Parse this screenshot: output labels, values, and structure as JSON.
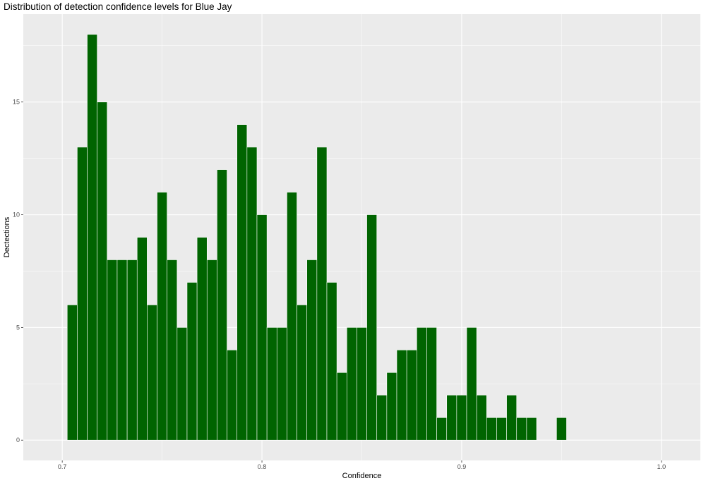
{
  "chart_data": {
    "type": "bar",
    "title": "Distribution of detection confidence levels for Blue Jay",
    "xlabel": "Confidence",
    "ylabel": "Dectections",
    "xlim": [
      0.6805,
      1.0195
    ],
    "ylim": [
      -0.9,
      18.9
    ],
    "x_ticks": [
      0.7,
      0.8,
      0.9,
      1.0
    ],
    "x_tick_labels": [
      "0.7",
      "0.8",
      "0.9",
      "1.0"
    ],
    "y_ticks": [
      0,
      5,
      10,
      15
    ],
    "y_tick_labels": [
      "0",
      "5",
      "10",
      "15"
    ],
    "bin_width": 0.005,
    "bin_centers": [
      0.705,
      0.71,
      0.715,
      0.72,
      0.725,
      0.73,
      0.735,
      0.74,
      0.745,
      0.75,
      0.755,
      0.76,
      0.765,
      0.77,
      0.775,
      0.78,
      0.785,
      0.79,
      0.795,
      0.8,
      0.805,
      0.81,
      0.815,
      0.82,
      0.825,
      0.83,
      0.835,
      0.84,
      0.845,
      0.85,
      0.855,
      0.86,
      0.865,
      0.87,
      0.875,
      0.88,
      0.885,
      0.89,
      0.895,
      0.9,
      0.905,
      0.91,
      0.915,
      0.92,
      0.925,
      0.93,
      0.935,
      0.94,
      0.945,
      0.95
    ],
    "values": [
      6,
      13,
      18,
      15,
      8,
      8,
      8,
      9,
      6,
      11,
      8,
      5,
      7,
      9,
      8,
      12,
      4,
      14,
      13,
      10,
      5,
      5,
      11,
      6,
      8,
      13,
      7,
      3,
      5,
      5,
      10,
      2,
      3,
      4,
      4,
      5,
      5,
      1,
      2,
      2,
      5,
      2,
      1,
      1,
      2,
      1,
      1,
      0,
      0,
      1
    ],
    "bar_color": "#006400",
    "bar_outline": "#ffffff",
    "panel_background": "#ebebeb",
    "grid": true,
    "grid_color": "#ffffff",
    "legend": "none"
  }
}
